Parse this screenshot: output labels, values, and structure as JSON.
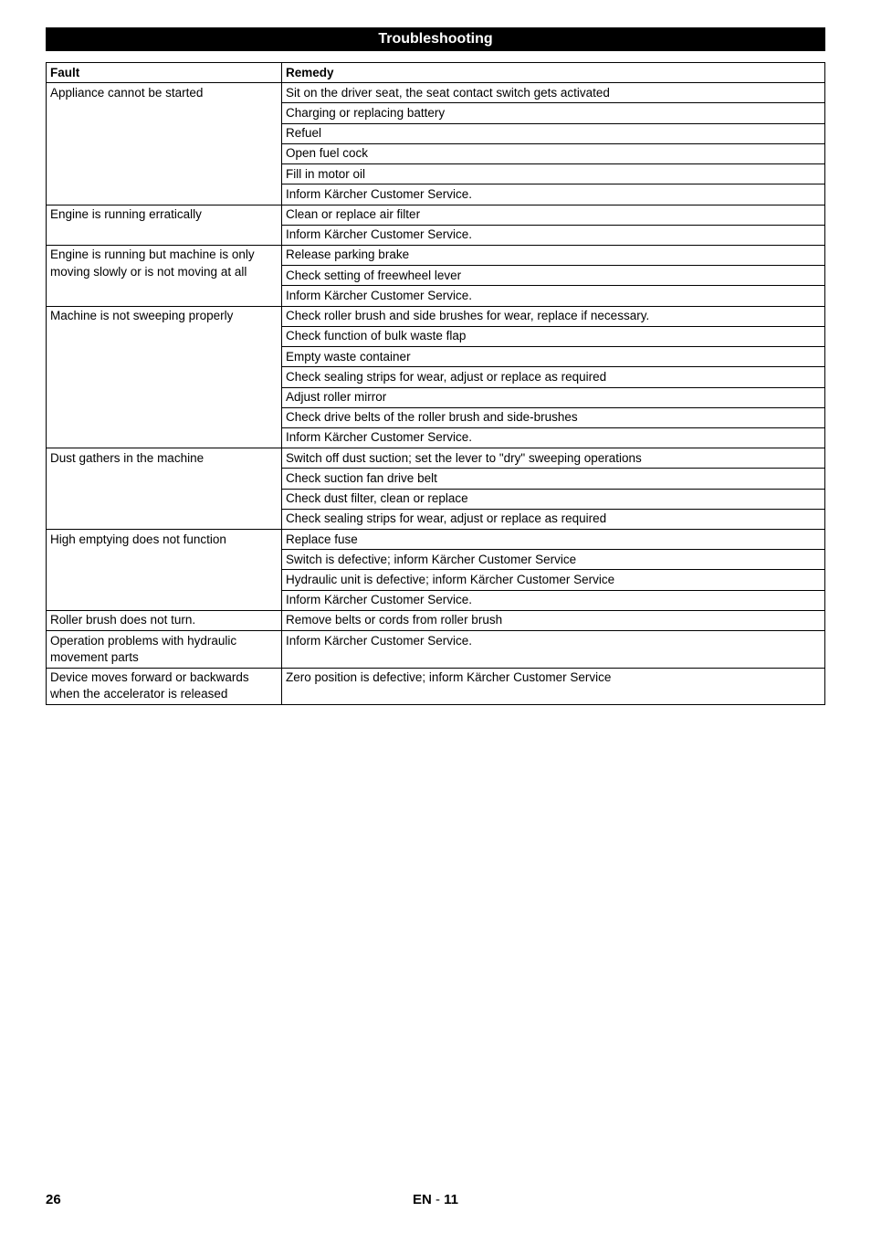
{
  "title": "Troubleshooting",
  "headers": {
    "fault": "Fault",
    "remedy": "Remedy"
  },
  "rows": [
    {
      "fault": "Appliance cannot be started",
      "remedies": [
        "Sit on the driver seat, the seat contact switch gets activated",
        "Charging or replacing battery",
        "Refuel",
        "Open fuel cock",
        "Fill in motor oil",
        "Inform Kärcher Customer Service."
      ]
    },
    {
      "fault": "Engine is running erratically",
      "remedies": [
        "Clean or replace air filter",
        "Inform Kärcher Customer Service."
      ]
    },
    {
      "fault": "Engine is running but machine is only moving slowly or is not moving at all",
      "remedies": [
        "Release parking brake",
        "Check setting of freewheel lever",
        "Inform Kärcher Customer Service."
      ]
    },
    {
      "fault": "Machine is not sweeping properly",
      "remedies": [
        "Check roller brush and side brushes for wear, replace if necessary.",
        "Check function of bulk waste flap",
        "Empty waste container",
        "Check sealing strips for wear, adjust or replace as required",
        "Adjust roller mirror",
        "Check drive belts of the roller brush and side-brushes",
        "Inform Kärcher Customer Service."
      ]
    },
    {
      "fault": "Dust gathers in the machine",
      "remedies": [
        "Switch off dust suction; set the lever to \"dry\" sweeping operations",
        "Check suction fan drive belt",
        "Check dust filter, clean or replace",
        "Check sealing strips for wear, adjust or replace as required"
      ]
    },
    {
      "fault": "High emptying does not function",
      "remedies": [
        "Replace fuse",
        "Switch is defective; inform Kärcher Customer Service",
        "Hydraulic unit is defective; inform Kärcher Customer Service",
        "Inform Kärcher Customer Service."
      ]
    },
    {
      "fault": "Roller brush does not turn.",
      "remedies": [
        "Remove belts or cords from roller brush"
      ]
    },
    {
      "fault": "Operation problems with hydraulic movement parts",
      "remedies": [
        "Inform Kärcher Customer Service."
      ]
    },
    {
      "fault": "Device moves forward or backwards when the accelerator is released",
      "remedies": [
        "Zero position is defective; inform Kärcher Customer Service"
      ]
    }
  ],
  "footer": {
    "page_left": "26",
    "lang": "EN",
    "sep": "  - ",
    "page_right": "11"
  }
}
